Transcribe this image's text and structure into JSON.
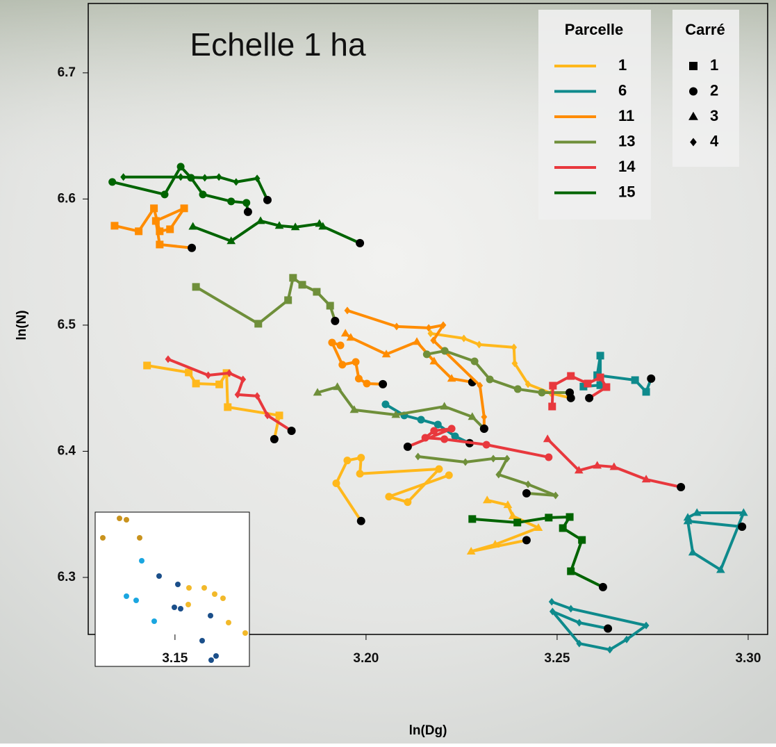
{
  "chart_data": {
    "type": "trajectory",
    "title": "Echelle 1 ha",
    "xlabel": "ln(Dg)",
    "ylabel": "ln(N)",
    "xlim": [
      3.1273,
      3.3051
    ],
    "ylim": [
      6.2548,
      6.755
    ],
    "xticks": [
      {
        "value": 3.15,
        "label": "3.15"
      },
      {
        "value": 3.2,
        "label": "3.20"
      },
      {
        "value": 3.25,
        "label": "3.25"
      },
      {
        "value": 3.3,
        "label": "3.30"
      }
    ],
    "yticks": [
      6.3,
      6.4,
      6.5,
      6.6,
      6.7
    ],
    "legend_title": "Parcelle",
    "marker_legend_title": "Carré",
    "end_color": "#000000",
    "markers": [
      {
        "name": "1",
        "shape": "square"
      },
      {
        "name": "2",
        "shape": "circle"
      },
      {
        "name": "3",
        "shape": "triangle"
      },
      {
        "name": "4",
        "shape": "diamond"
      }
    ],
    "series": [
      {
        "name": "1",
        "color": "#ffb81c",
        "tracks": [
          {
            "x": [
              3.1427,
              3.1536,
              3.1555,
              3.1616,
              3.1635,
              3.1638,
              3.1773,
              3.176
            ],
            "y": [
              6.468,
              6.4625,
              6.4537,
              6.453,
              6.462,
              6.435,
              6.4284,
              6.4096
            ]
          },
          {
            "x": [
              3.2217,
              3.206,
              3.2109,
              3.2191,
              3.1984,
              3.1987,
              3.1951,
              3.1922,
              3.1987
            ],
            "y": [
              6.381,
              6.364,
              6.3597,
              6.3859,
              6.3822,
              6.3949,
              6.3927,
              6.3746,
              6.3447
            ]
          },
          {
            "x": [
              3.2317,
              3.2371,
              3.2384,
              3.2451,
              3.2338,
              3.2275,
              3.242
            ],
            "y": [
              6.3612,
              6.3574,
              6.3486,
              6.3393,
              6.3261,
              6.3206,
              6.3295
            ]
          },
          {
            "x": [
              3.2169,
              3.2256,
              3.2296,
              3.2387,
              3.2389,
              3.2424,
              3.2484,
              3.2536
            ],
            "y": [
              6.4934,
              6.4895,
              6.4846,
              6.4824,
              6.4697,
              6.4532,
              6.446,
              6.4422
            ]
          }
        ]
      },
      {
        "name": "6",
        "color": "#0e8a8c",
        "tracks": [
          {
            "x": [
              3.2569,
              3.2613,
              3.2613,
              3.2605,
              3.2704,
              3.2733,
              3.2746
            ],
            "y": [
              6.4513,
              6.4524,
              6.4758,
              6.4603,
              6.4564,
              6.4471,
              6.4576
            ]
          },
          {
            "x": [
              3.2051,
              3.21,
              3.2144,
              3.2188,
              3.2233,
              3.2271
            ],
            "y": [
              6.4372,
              6.4284,
              6.425,
              6.4212,
              6.4119,
              6.4064
            ]
          },
          {
            "x": [
              3.2842,
              3.2866,
              3.2988,
              3.2928,
              3.2855,
              3.2842,
              3.2984
            ],
            "y": [
              6.3474,
              6.3512,
              6.3512,
              6.306,
              6.3198,
              6.3446,
              6.3402
            ]
          },
          {
            "x": [
              3.2486,
              3.2536,
              3.2733,
              3.2682,
              3.2638,
              3.2558,
              3.2488,
              3.2558,
              3.2633
            ],
            "y": [
              6.2807,
              6.2752,
              6.2619,
              6.2508,
              6.2427,
              6.2476,
              6.273,
              6.2641,
              6.2595
            ]
          }
        ]
      },
      {
        "name": "11",
        "color": "#ff8c00",
        "tracks": [
          {
            "x": [
              3.1342,
              3.1405,
              3.1445,
              3.146,
              3.1487,
              3.1524,
              3.145,
              3.146,
              3.1544
            ],
            "y": [
              6.5788,
              6.5744,
              6.5926,
              6.5744,
              6.576,
              6.5926,
              6.5826,
              6.5639,
              6.5612
            ]
          },
          {
            "x": [
              3.1933,
              3.1911,
              3.1938,
              3.1973,
              3.1981,
              3.2002,
              3.2044
            ],
            "y": [
              6.484,
              6.4862,
              6.4686,
              6.4708,
              6.4576,
              6.4537,
              6.4532
            ]
          },
          {
            "x": [
              3.1946,
              3.196,
              3.2053,
              3.2133,
              3.2178,
              3.2224,
              3.2278
            ],
            "y": [
              6.4934,
              6.4901,
              6.4769,
              6.4868,
              6.4713,
              6.4576,
              6.4548
            ]
          },
          {
            "x": [
              3.1951,
              3.208,
              3.2164,
              3.2202,
              3.2176,
              3.2298,
              3.2309,
              3.2309
            ],
            "y": [
              6.5116,
              6.4989,
              6.4978,
              6.5,
              6.4879,
              6.4521,
              6.4272,
              6.4179
            ]
          }
        ]
      },
      {
        "name": "13",
        "color": "#6f8f3a",
        "tracks": [
          {
            "x": [
              3.1555,
              3.1718,
              3.1796,
              3.1809,
              3.1833,
              3.1871,
              3.1906,
              3.1919
            ],
            "y": [
              6.5303,
              6.5011,
              6.5198,
              6.5375,
              6.532,
              6.5264,
              6.5154,
              6.5033
            ]
          },
          {
            "x": [
              3.2159,
              3.2206,
              3.2284,
              3.2324,
              3.2397,
              3.246,
              3.2533
            ],
            "y": [
              6.4769,
              6.4796,
              6.4713,
              6.457,
              6.4493,
              6.4465,
              6.4465
            ]
          },
          {
            "x": [
              3.1873,
              3.1925,
              3.1969,
              3.2078,
              3.2205,
              3.2278,
              3.2309
            ],
            "y": [
              6.4465,
              6.451,
              6.4328,
              6.4289,
              6.4355,
              6.4273,
              6.4179
            ]
          },
          {
            "x": [
              3.2136,
              3.226,
              3.2333,
              3.2369,
              3.2347,
              3.2424,
              3.2496,
              3.242
            ],
            "y": [
              6.3958,
              6.3914,
              6.3942,
              6.3942,
              6.3815,
              6.3738,
              6.365,
              6.3667
            ]
          }
        ]
      },
      {
        "name": "14",
        "color": "#e8383d",
        "tracks": [
          {
            "x": [
              3.2487,
              3.2489,
              3.2536,
              3.258,
              3.2613,
              3.2629,
              3.2584
            ],
            "y": [
              6.4355,
              6.452,
              6.4597,
              6.4537,
              6.4586,
              6.4509,
              6.4422
            ]
          },
          {
            "x": [
              3.2478,
              3.2315,
              3.2205,
              3.2155,
              3.2178,
              3.2224,
              3.2109
            ],
            "y": [
              6.3953,
              6.4052,
              6.4096,
              6.4107,
              6.4162,
              6.4179,
              6.4036
            ]
          },
          {
            "x": [
              3.2475,
              3.2557,
              3.2605,
              3.2649,
              3.2733,
              3.2824
            ],
            "y": [
              6.4097,
              6.3848,
              6.3887,
              6.3876,
              6.3777,
              6.3716
            ]
          },
          {
            "x": [
              3.1482,
              3.1587,
              3.1642,
              3.1678,
              3.1664,
              3.1715,
              3.1742,
              3.1805
            ],
            "y": [
              6.473,
              6.4603,
              6.462,
              6.457,
              6.4449,
              6.4438,
              6.4284,
              6.4162
            ]
          }
        ]
      },
      {
        "name": "15",
        "color": "#006400",
        "tracks": [
          {
            "x": [
              3.2278,
              3.2396,
              3.2478,
              3.2533,
              3.2515,
              3.2565,
              3.2536,
              3.262
            ],
            "y": [
              6.3463,
              6.3435,
              6.3474,
              6.3479,
              6.3391,
              6.3297,
              6.3049,
              6.2923
            ]
          },
          {
            "x": [
              3.1336,
              3.1473,
              3.1515,
              3.1542,
              3.1573,
              3.1647,
              3.1687,
              3.1691
            ],
            "y": [
              6.6135,
              6.6036,
              6.6256,
              6.6168,
              6.6036,
              6.5981,
              6.597,
              6.5898
            ]
          },
          {
            "x": [
              3.1547,
              3.1647,
              3.1724,
              3.1773,
              3.1815,
              3.1878,
              3.1887,
              3.1984
            ],
            "y": [
              6.5781,
              6.5667,
              6.5826,
              6.5788,
              6.5777,
              6.5804,
              6.5782,
              6.565
            ]
          },
          {
            "x": [
              3.1365,
              3.1515,
              3.1578,
              3.1615,
              3.166,
              3.1715,
              3.1742
            ],
            "y": [
              6.6174,
              6.6174,
              6.6168,
              6.6174,
              6.6135,
              6.6163,
              6.5992
            ]
          }
        ]
      }
    ]
  }
}
